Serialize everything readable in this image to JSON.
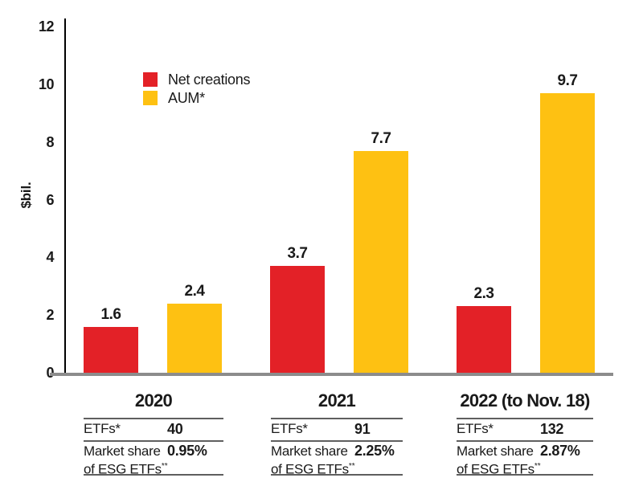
{
  "chart_data": {
    "type": "bar",
    "title": "",
    "ylabel": "$bil.",
    "ylim": [
      0,
      12
    ],
    "yticks": [
      0,
      2,
      4,
      6,
      8,
      10,
      12
    ],
    "grid": false,
    "legend_position": "upper-left-inside",
    "categories": [
      "2020",
      "2021",
      "2022 (to Nov. 18)"
    ],
    "series": [
      {
        "name": "Net creations",
        "color": "#e32127",
        "values": [
          1.6,
          3.7,
          2.3
        ]
      },
      {
        "name": "AUM*",
        "color": "#fec112",
        "values": [
          2.4,
          7.7,
          9.7
        ]
      }
    ]
  },
  "tables": {
    "row1_label": "ETFs*",
    "row2_label_line1": "Market share",
    "row2_label_line2": "of ESG ETFs",
    "row2_label_sup": "**",
    "groups": [
      {
        "year": "2020",
        "etfs": "40",
        "market_share": "0.95%"
      },
      {
        "year": "2021",
        "etfs": "91",
        "market_share": "2.25%"
      },
      {
        "year": "2022 (to Nov. 18)",
        "etfs": "132",
        "market_share": "2.87%"
      }
    ]
  },
  "colors": {
    "red": "#e32127",
    "yellow": "#fec112",
    "axis": "#000000",
    "baseline_gray": "#8c8c8c",
    "rule_gray": "#5f5f5f"
  }
}
